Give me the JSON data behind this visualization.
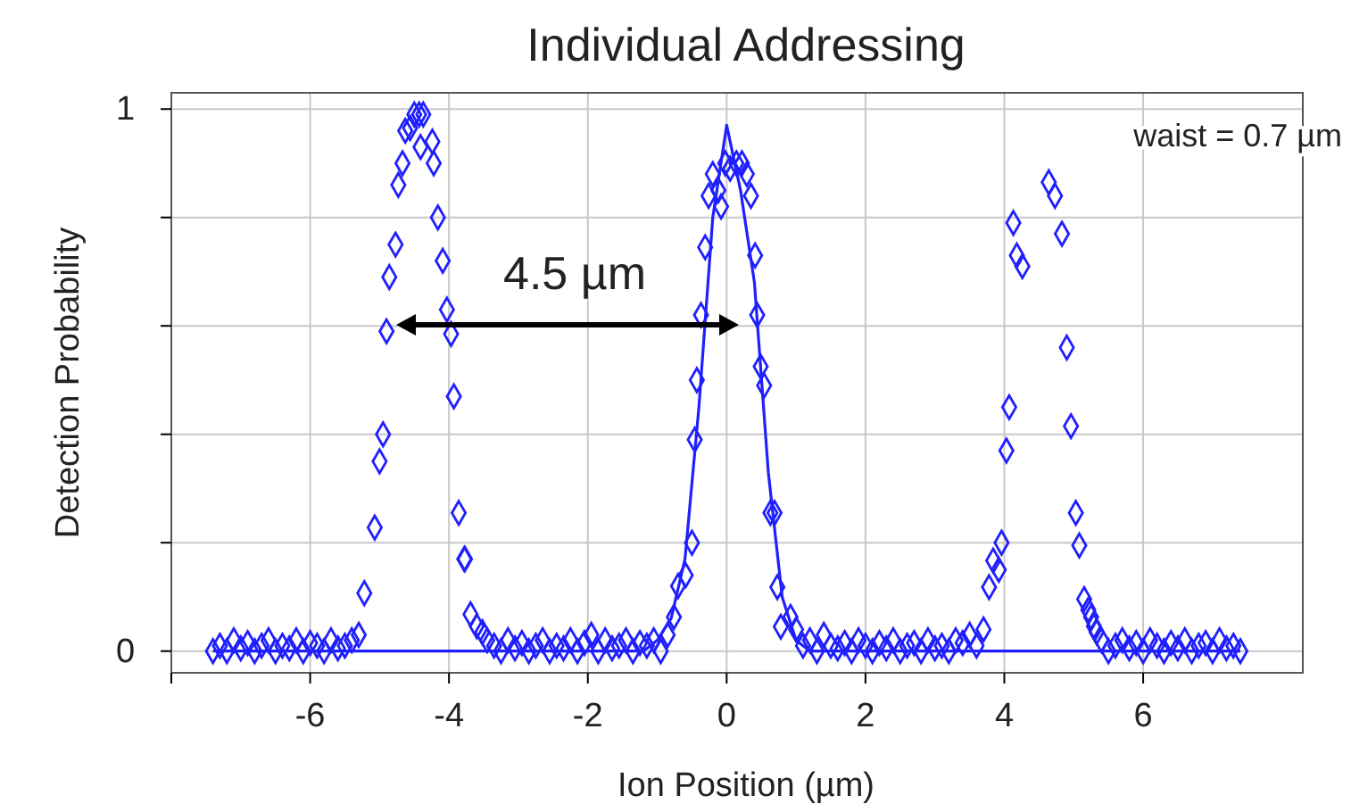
{
  "chart_data": {
    "type": "scatter",
    "title": "Individual Addressing",
    "xlabel": "Ion Position (µm)",
    "ylabel": "Detection Probability",
    "xlim": [
      -8,
      8.3
    ],
    "ylim": [
      -0.04,
      1.03
    ],
    "xticks": [
      {
        "value": -8,
        "label": null
      },
      -6,
      -4,
      -2,
      0,
      2,
      4,
      6
    ],
    "yticks": [
      0,
      {
        "value": 0.2,
        "label": null
      },
      {
        "value": 0.4,
        "label": null
      },
      {
        "value": 0.6,
        "label": null
      },
      {
        "value": 0.8,
        "label": null
      },
      1
    ],
    "grid": true,
    "annotations": [
      "4.5 µm",
      "waist = 0.7 µm"
    ],
    "series": [
      {
        "marker": "diamond",
        "color": "#1f1fff",
        "x": [
          -7.4,
          -7.3,
          -7.2,
          -7.1,
          -7.0,
          -6.9,
          -6.8,
          -6.7,
          -6.6,
          -6.5,
          -6.4,
          -6.3,
          -6.2,
          -6.1,
          -6.0,
          -5.9,
          -5.8,
          -5.7,
          -5.6,
          -5.5,
          -5.4,
          -5.3,
          -5.22,
          -5.07,
          -5.0,
          -4.95,
          -4.9,
          -4.86,
          -4.77,
          -4.73,
          -4.67,
          -4.63,
          -4.56,
          -4.5,
          -4.43,
          -4.37,
          -4.41,
          -4.24,
          -4.22,
          -4.16,
          -4.09,
          -4.03,
          -3.97,
          -3.93,
          -3.86,
          -3.78,
          -3.77,
          -3.69,
          -3.6,
          -3.52,
          -3.45,
          -3.35,
          -3.25,
          -3.15,
          -3.05,
          -2.95,
          -2.85,
          -2.75,
          -2.65,
          -2.55,
          -2.45,
          -2.35,
          -2.25,
          -2.15,
          -2.05,
          -1.95,
          -1.85,
          -1.75,
          -1.65,
          -1.55,
          -1.45,
          -1.35,
          -1.25,
          -1.15,
          -1.05,
          -0.95,
          -0.85,
          -0.76,
          -0.7,
          -0.59,
          -0.5,
          -0.46,
          -0.43,
          -0.37,
          -0.31,
          -0.26,
          -0.2,
          -0.12,
          -0.08,
          -0.02,
          0.05,
          0.14,
          0.22,
          0.29,
          0.35,
          0.41,
          0.44,
          0.49,
          0.54,
          0.63,
          0.69,
          0.73,
          0.78,
          0.92,
          1.0,
          1.1,
          1.2,
          1.3,
          1.4,
          1.5,
          1.6,
          1.7,
          1.8,
          1.9,
          2.0,
          2.1,
          2.2,
          2.3,
          2.4,
          2.5,
          2.6,
          2.7,
          2.8,
          2.9,
          3.0,
          3.1,
          3.2,
          3.3,
          3.4,
          3.5,
          3.6,
          3.7,
          3.78,
          3.84,
          3.92,
          3.96,
          4.03,
          4.07,
          4.13,
          4.18,
          4.26,
          4.64,
          4.73,
          4.83,
          4.9,
          4.96,
          5.03,
          5.08,
          5.15,
          5.21,
          5.25,
          5.29,
          5.33,
          5.4,
          5.5,
          5.6,
          5.7,
          5.8,
          5.9,
          6.0,
          6.1,
          6.2,
          6.3,
          6.4,
          6.5,
          6.6,
          6.7,
          6.8,
          6.9,
          7.0,
          7.1,
          7.2,
          7.3,
          7.4
        ],
        "values": [
          0.0,
          0.01,
          0.0,
          0.02,
          0.005,
          0.015,
          0.0,
          0.01,
          0.02,
          0.0,
          0.01,
          0.005,
          0.02,
          0.0,
          0.015,
          0.01,
          0.0,
          0.02,
          0.005,
          0.01,
          0.02,
          0.03,
          0.107,
          0.228,
          0.35,
          0.4,
          0.59,
          0.69,
          0.75,
          0.86,
          0.9,
          0.96,
          0.965,
          0.99,
          0.99,
          0.99,
          0.93,
          0.94,
          0.9,
          0.8,
          0.72,
          0.63,
          0.585,
          0.47,
          0.255,
          0.17,
          0.17,
          0.068,
          0.046,
          0.035,
          0.02,
          0.01,
          0.0,
          0.02,
          0.005,
          0.015,
          0.0,
          0.01,
          0.02,
          0.0,
          0.01,
          0.005,
          0.02,
          0.0,
          0.015,
          0.03,
          0.0,
          0.02,
          0.005,
          0.01,
          0.02,
          0.0,
          0.015,
          0.01,
          0.02,
          0.0,
          0.03,
          0.063,
          0.12,
          0.14,
          0.2,
          0.39,
          0.5,
          0.62,
          0.745,
          0.84,
          0.88,
          0.85,
          0.82,
          0.9,
          0.89,
          0.9,
          0.9,
          0.88,
          0.84,
          0.73,
          0.62,
          0.525,
          0.49,
          0.255,
          0.255,
          0.118,
          0.045,
          0.063,
          0.04,
          0.01,
          0.02,
          0.0,
          0.03,
          0.01,
          0.005,
          0.015,
          0.0,
          0.02,
          0.01,
          0.0,
          0.015,
          0.005,
          0.02,
          0.0,
          0.01,
          0.015,
          0.0,
          0.02,
          0.005,
          0.01,
          0.0,
          0.02,
          0.015,
          0.03,
          0.01,
          0.04,
          0.118,
          0.167,
          0.15,
          0.2,
          0.37,
          0.45,
          0.79,
          0.73,
          0.71,
          0.865,
          0.84,
          0.77,
          0.56,
          0.415,
          0.255,
          0.195,
          0.096,
          0.076,
          0.063,
          0.046,
          0.035,
          0.02,
          0.0,
          0.01,
          0.02,
          0.005,
          0.015,
          0.0,
          0.02,
          0.01,
          0.0,
          0.015,
          0.005,
          0.02,
          0.0,
          0.01,
          0.015,
          0.0,
          0.02,
          0.005,
          0.01,
          0.0
        ]
      },
      {
        "type": "line",
        "marker": "none",
        "color": "#1f1fff",
        "x": [
          -7.4,
          -1.2,
          -1.0,
          -0.8,
          -0.6,
          -0.4,
          -0.2,
          0,
          0.2,
          0.4,
          0.6,
          0.8,
          1.0,
          1.2,
          7.4
        ],
        "values": [
          0.0,
          0.0,
          0.02,
          0.06,
          0.17,
          0.45,
          0.8,
          0.97,
          0.85,
          0.68,
          0.33,
          0.1,
          0.02,
          0.0,
          0.0
        ]
      }
    ]
  }
}
